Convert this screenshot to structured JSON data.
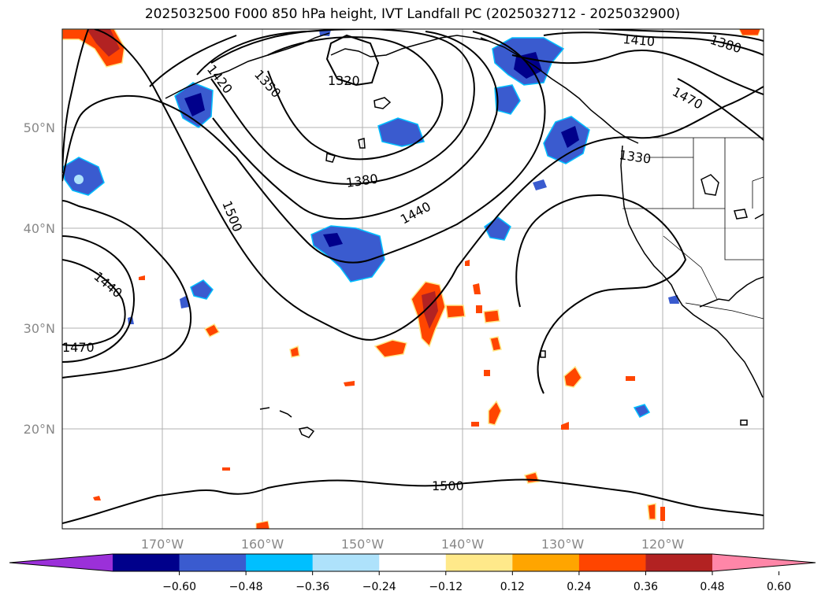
{
  "title": "2025032500 F000 850 hPa height, IVT Landfall PC (2025032712 - 2025032900)",
  "lat_labels": [
    "50°N",
    "40°N",
    "30°N",
    "20°N"
  ],
  "lon_labels": [
    "170°W",
    "160°W",
    "150°W",
    "140°W",
    "130°W",
    "120°W"
  ],
  "contour_labels": [
    "1410",
    "1380",
    "1320",
    "1350",
    "1420",
    "1470",
    "1380",
    "1330",
    "1440",
    "1500",
    "1440",
    "1470",
    "1500"
  ],
  "colorbar": {
    "ticks": [
      "−0.60",
      "−0.48",
      "−0.36",
      "−0.24",
      "−0.12",
      "0.12",
      "0.24",
      "0.36",
      "0.48",
      "0.60"
    ],
    "colors": [
      "#9b30d9",
      "#00008b",
      "#3a5bcf",
      "#00bfff",
      "#aee2fb",
      "#ffffff",
      "#ffe98a",
      "#ffa500",
      "#ff4500",
      "#b22222",
      "#ff86a8"
    ]
  }
}
